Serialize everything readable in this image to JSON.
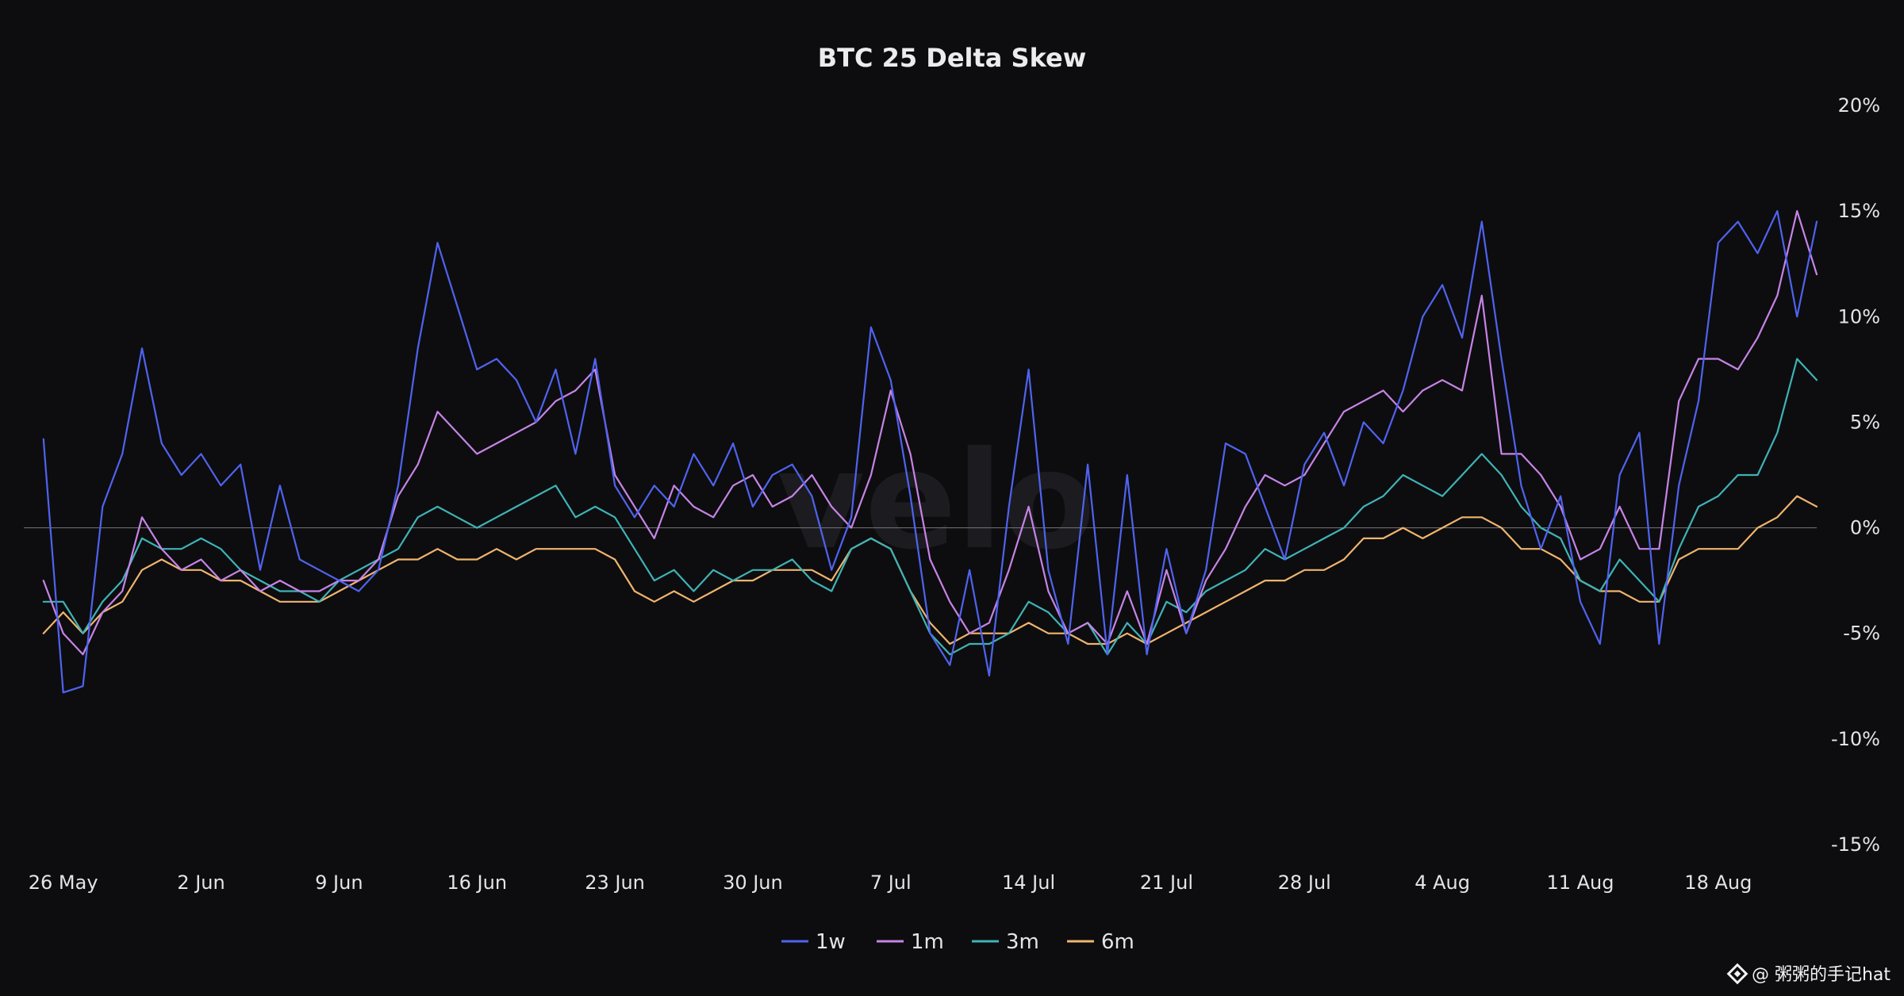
{
  "watermark": "velo",
  "credit": {
    "text": "@ 粥粥的手记hat"
  },
  "chart_data": {
    "type": "line",
    "title": "BTC 25 Delta Skew",
    "xlabel": "",
    "ylabel": "",
    "y_unit": "%",
    "ylim": [
      -15,
      20
    ],
    "y_ticks": [
      20,
      15,
      10,
      5,
      0,
      -5,
      -10,
      -15
    ],
    "y_tick_labels": [
      "20%",
      "15%",
      "10%",
      "5%",
      "0%",
      "-5%",
      "-10%",
      "-15%"
    ],
    "x_range": [
      "2025-05-24",
      "2025-08-23"
    ],
    "x_ticks": [
      "2025-05-26",
      "2025-06-02",
      "2025-06-09",
      "2025-06-16",
      "2025-06-23",
      "2025-06-30",
      "2025-07-07",
      "2025-07-14",
      "2025-07-21",
      "2025-07-28",
      "2025-08-04",
      "2025-08-11",
      "2025-08-18"
    ],
    "x_tick_labels": [
      "26 May",
      "2 Jun",
      "9 Jun",
      "16 Jun",
      "23 Jun",
      "30 Jun",
      "7 Jul",
      "14 Jul",
      "21 Jul",
      "28 Jul",
      "4 Aug",
      "11 Aug",
      "18 Aug"
    ],
    "zero_line": true,
    "grid": false,
    "y_axis_position": "right",
    "legend_position": "bottom-center",
    "x": [
      "2025-05-25",
      "2025-05-26",
      "2025-05-27",
      "2025-05-28",
      "2025-05-29",
      "2025-05-30",
      "2025-05-31",
      "2025-06-01",
      "2025-06-02",
      "2025-06-03",
      "2025-06-04",
      "2025-06-05",
      "2025-06-06",
      "2025-06-07",
      "2025-06-08",
      "2025-06-09",
      "2025-06-10",
      "2025-06-11",
      "2025-06-12",
      "2025-06-13",
      "2025-06-14",
      "2025-06-15",
      "2025-06-16",
      "2025-06-17",
      "2025-06-18",
      "2025-06-19",
      "2025-06-20",
      "2025-06-21",
      "2025-06-22",
      "2025-06-23",
      "2025-06-24",
      "2025-06-25",
      "2025-06-26",
      "2025-06-27",
      "2025-06-28",
      "2025-06-29",
      "2025-06-30",
      "2025-07-01",
      "2025-07-02",
      "2025-07-03",
      "2025-07-04",
      "2025-07-05",
      "2025-07-06",
      "2025-07-07",
      "2025-07-08",
      "2025-07-09",
      "2025-07-10",
      "2025-07-11",
      "2025-07-12",
      "2025-07-13",
      "2025-07-14",
      "2025-07-15",
      "2025-07-16",
      "2025-07-17",
      "2025-07-18",
      "2025-07-19",
      "2025-07-20",
      "2025-07-21",
      "2025-07-22",
      "2025-07-23",
      "2025-07-24",
      "2025-07-25",
      "2025-07-26",
      "2025-07-27",
      "2025-07-28",
      "2025-07-29",
      "2025-07-30",
      "2025-07-31",
      "2025-08-01",
      "2025-08-02",
      "2025-08-03",
      "2025-08-04",
      "2025-08-05",
      "2025-08-06",
      "2025-08-07",
      "2025-08-08",
      "2025-08-09",
      "2025-08-10",
      "2025-08-11",
      "2025-08-12",
      "2025-08-13",
      "2025-08-14",
      "2025-08-15",
      "2025-08-16",
      "2025-08-17",
      "2025-08-18",
      "2025-08-19",
      "2025-08-20",
      "2025-08-21",
      "2025-08-22",
      "2025-08-23"
    ],
    "series": [
      {
        "name": "1w",
        "color": "#4f63f0",
        "values": [
          4.2,
          -7.8,
          -7.5,
          1.0,
          3.5,
          8.5,
          4.0,
          2.5,
          3.5,
          2.0,
          3.0,
          -2.0,
          2.0,
          -1.5,
          -2.0,
          -2.5,
          -3.0,
          -2.0,
          2.0,
          8.5,
          13.5,
          10.5,
          7.5,
          8.0,
          7.0,
          5.0,
          7.5,
          3.5,
          8.0,
          2.0,
          0.5,
          2.0,
          1.0,
          3.5,
          2.0,
          4.0,
          1.0,
          2.5,
          3.0,
          1.5,
          -2.0,
          0.5,
          9.5,
          7.0,
          1.5,
          -5.0,
          -6.5,
          -2.0,
          -7.0,
          1.0,
          7.5,
          -2.0,
          -5.5,
          3.0,
          -6.0,
          2.5,
          -6.0,
          -1.0,
          -5.0,
          -2.0,
          4.0,
          3.5,
          1.0,
          -1.5,
          3.0,
          4.5,
          2.0,
          5.0,
          4.0,
          6.5,
          10.0,
          11.5,
          9.0,
          14.5,
          8.0,
          2.0,
          -1.0,
          1.5,
          -3.5,
          -5.5,
          2.5,
          4.5,
          -5.5,
          2.0,
          6.0,
          13.5,
          14.5,
          13.0,
          15.0,
          10.0,
          14.5
        ]
      },
      {
        "name": "1m",
        "color": "#c784e6",
        "values": [
          -2.5,
          -5.0,
          -6.0,
          -4.0,
          -3.0,
          0.5,
          -1.0,
          -2.0,
          -1.5,
          -2.5,
          -2.0,
          -3.0,
          -2.5,
          -3.0,
          -3.0,
          -2.5,
          -2.5,
          -1.5,
          1.5,
          3.0,
          5.5,
          4.5,
          3.5,
          4.0,
          4.5,
          5.0,
          6.0,
          6.5,
          7.5,
          2.5,
          1.0,
          -0.5,
          2.0,
          1.0,
          0.5,
          2.0,
          2.5,
          1.0,
          1.5,
          2.5,
          1.0,
          0.0,
          2.5,
          6.5,
          3.5,
          -1.5,
          -3.5,
          -5.0,
          -4.5,
          -2.0,
          1.0,
          -3.0,
          -5.0,
          -4.5,
          -5.5,
          -3.0,
          -5.5,
          -2.0,
          -5.0,
          -2.5,
          -1.0,
          1.0,
          2.5,
          2.0,
          2.5,
          4.0,
          5.5,
          6.0,
          6.5,
          5.5,
          6.5,
          7.0,
          6.5,
          11.0,
          3.5,
          3.5,
          2.5,
          1.0,
          -1.5,
          -1.0,
          1.0,
          -1.0,
          -1.0,
          6.0,
          8.0,
          8.0,
          7.5,
          9.0,
          11.0,
          15.0,
          12.0
        ]
      },
      {
        "name": "3m",
        "color": "#3fb3b6",
        "values": [
          -3.5,
          -3.5,
          -5.0,
          -3.5,
          -2.5,
          -0.5,
          -1.0,
          -1.0,
          -0.5,
          -1.0,
          -2.0,
          -2.5,
          -3.0,
          -3.0,
          -3.5,
          -2.5,
          -2.0,
          -1.5,
          -1.0,
          0.5,
          1.0,
          0.5,
          0.0,
          0.5,
          1.0,
          1.5,
          2.0,
          0.5,
          1.0,
          0.5,
          -1.0,
          -2.5,
          -2.0,
          -3.0,
          -2.0,
          -2.5,
          -2.0,
          -2.0,
          -1.5,
          -2.5,
          -3.0,
          -1.0,
          -0.5,
          -1.0,
          -3.0,
          -5.0,
          -6.0,
          -5.5,
          -5.5,
          -5.0,
          -3.5,
          -4.0,
          -5.0,
          -4.5,
          -6.0,
          -4.5,
          -5.5,
          -3.5,
          -4.0,
          -3.0,
          -2.5,
          -2.0,
          -1.0,
          -1.5,
          -1.0,
          -0.5,
          0.0,
          1.0,
          1.5,
          2.5,
          2.0,
          1.5,
          2.5,
          3.5,
          2.5,
          1.0,
          0.0,
          -0.5,
          -2.5,
          -3.0,
          -1.5,
          -2.5,
          -3.5,
          -1.0,
          1.0,
          1.5,
          2.5,
          2.5,
          4.5,
          8.0,
          7.0
        ]
      },
      {
        "name": "6m",
        "color": "#f0b46e",
        "values": [
          -5.0,
          -4.0,
          -5.0,
          -4.0,
          -3.5,
          -2.0,
          -1.5,
          -2.0,
          -2.0,
          -2.5,
          -2.5,
          -3.0,
          -3.5,
          -3.5,
          -3.5,
          -3.0,
          -2.5,
          -2.0,
          -1.5,
          -1.5,
          -1.0,
          -1.5,
          -1.5,
          -1.0,
          -1.5,
          -1.0,
          -1.0,
          -1.0,
          -1.0,
          -1.5,
          -3.0,
          -3.5,
          -3.0,
          -3.5,
          -3.0,
          -2.5,
          -2.5,
          -2.0,
          -2.0,
          -2.0,
          -2.5,
          -1.0,
          -0.5,
          -1.0,
          -3.0,
          -4.5,
          -5.5,
          -5.0,
          -5.0,
          -5.0,
          -4.5,
          -5.0,
          -5.0,
          -5.5,
          -5.5,
          -5.0,
          -5.5,
          -5.0,
          -4.5,
          -4.0,
          -3.5,
          -3.0,
          -2.5,
          -2.5,
          -2.0,
          -2.0,
          -1.5,
          -0.5,
          -0.5,
          0.0,
          -0.5,
          0.0,
          0.5,
          0.5,
          0.0,
          -1.0,
          -1.0,
          -1.5,
          -2.5,
          -3.0,
          -3.0,
          -3.5,
          -3.5,
          -1.5,
          -1.0,
          -1.0,
          -1.0,
          0.0,
          0.5,
          1.5,
          1.0
        ]
      }
    ]
  }
}
